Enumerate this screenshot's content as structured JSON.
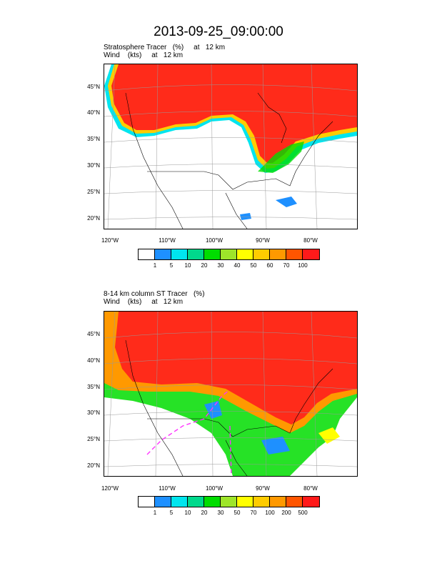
{
  "title": "2013-09-25_09:00:00",
  "panels": [
    {
      "label_line1": "Stratosphere Tracer   (%)     at   12 km",
      "label_line2": "Wind    (kts)     at   12 km",
      "lat_labels": [
        "45°N",
        "40°N",
        "35°N",
        "30°N",
        "25°N",
        "20°N"
      ],
      "lon_labels": [
        "120°W",
        "110°W",
        "100°W",
        "90°W",
        "80°W"
      ],
      "colorbar_labels": [
        "1",
        "5",
        "10",
        "20",
        "30",
        "40",
        "50",
        "60",
        "70",
        "100"
      ]
    },
    {
      "label_line1": "8-14 km column ST Tracer   (%)",
      "label_line2": "Wind    (kts)     at   12 km",
      "lat_labels": [
        "45°N",
        "40°N",
        "35°N",
        "30°N",
        "25°N",
        "20°N"
      ],
      "lon_labels": [
        "120°W",
        "110°W",
        "100°W",
        "90°W",
        "80°W"
      ],
      "colorbar_labels": [
        "1",
        "5",
        "10",
        "20",
        "30",
        "50",
        "70",
        "100",
        "200",
        "500"
      ]
    }
  ],
  "colorbar_colors": [
    "#ffffff",
    "#1e90ff",
    "#00e5ee",
    "#00d98c",
    "#00dd00",
    "#9ee52a",
    "#ffff00",
    "#ffcc00",
    "#ff9900",
    "#ff5500",
    "#ff1a1a"
  ]
}
